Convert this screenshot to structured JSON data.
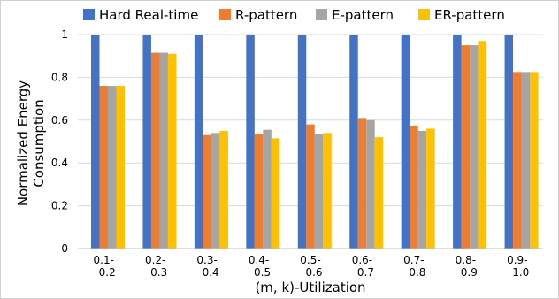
{
  "chart_data": {
    "type": "bar",
    "categories": [
      [
        "0.1-",
        "0.2"
      ],
      [
        "0.2-",
        "0.3"
      ],
      [
        "0.3-",
        "0.4"
      ],
      [
        "0.4-",
        "0.5"
      ],
      [
        "0.5-",
        "0.6"
      ],
      [
        "0.6-",
        "0.7"
      ],
      [
        "0.7-",
        "0.8"
      ],
      [
        "0.8-",
        "0.9"
      ],
      [
        "0.9-",
        "1.0"
      ]
    ],
    "series": [
      {
        "name": "Hard Real-time",
        "color": "#4472C4",
        "values": [
          1,
          1,
          1,
          1,
          1,
          1,
          1,
          1,
          1
        ]
      },
      {
        "name": "R-pattern",
        "color": "#ED7D31",
        "values": [
          0.76,
          0.915,
          0.53,
          0.535,
          0.58,
          0.61,
          0.575,
          0.95,
          0.825
        ]
      },
      {
        "name": "E-pattern",
        "color": "#A5A5A5",
        "values": [
          0.76,
          0.915,
          0.54,
          0.555,
          0.535,
          0.6,
          0.55,
          0.95,
          0.825
        ]
      },
      {
        "name": "ER-pattern",
        "color": "#FFC000",
        "values": [
          0.76,
          0.91,
          0.55,
          0.515,
          0.54,
          0.52,
          0.56,
          0.97,
          0.825
        ]
      }
    ],
    "title": "",
    "xlabel": "(m, k)-Utilization",
    "ylabel": [
      "Normalized Energy",
      "Consumption"
    ],
    "ylim": [
      0,
      1
    ],
    "yticks": [
      "0",
      "0.2",
      "0.4",
      "0.6",
      "0.8",
      "1"
    ],
    "grid": true,
    "legend_position": "top"
  }
}
